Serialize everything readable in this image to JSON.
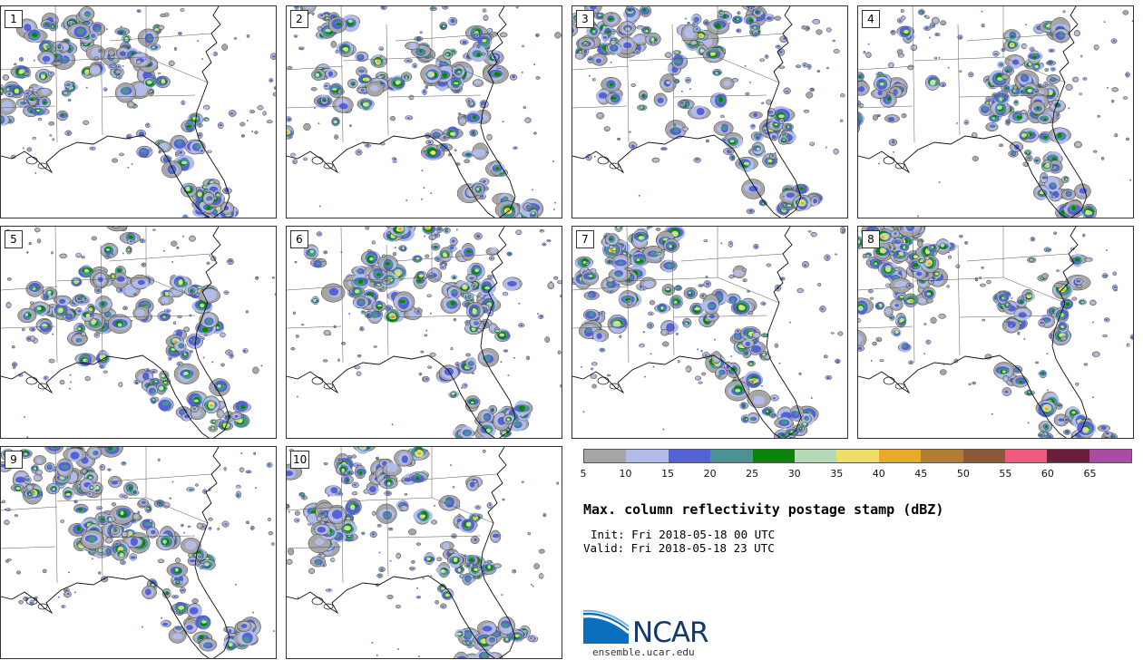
{
  "panels": [
    {
      "label": "1",
      "seed": 11
    },
    {
      "label": "2",
      "seed": 27
    },
    {
      "label": "3",
      "seed": 43
    },
    {
      "label": "4",
      "seed": 59
    },
    {
      "label": "5",
      "seed": 71
    },
    {
      "label": "6",
      "seed": 89
    },
    {
      "label": "7",
      "seed": 97
    },
    {
      "label": "8",
      "seed": 113
    },
    {
      "label": "9",
      "seed": 131
    },
    {
      "label": "10",
      "seed": 149
    }
  ],
  "legend": {
    "ticks": [
      "5",
      "10",
      "15",
      "20",
      "25",
      "30",
      "35",
      "40",
      "45",
      "50",
      "55",
      "60",
      "65"
    ],
    "colors": [
      "#a6a6a6",
      "#b3bce8",
      "#5562d6",
      "#4a9393",
      "#0a8509",
      "#b6dab7",
      "#efdd6a",
      "#eaa92a",
      "#b17e33",
      "#8a593a",
      "#ef5a7f",
      "#6d1c3c",
      "#ad4aa4"
    ]
  },
  "title": "Max. column reflectivity postage stamp (dBZ)",
  "init": "Init: Fri 2018-05-18 00 UTC",
  "valid": "Valid: Fri 2018-05-18 23 UTC",
  "logo": {
    "name": "NCAR",
    "url": "ensemble.ucar.edu"
  }
}
